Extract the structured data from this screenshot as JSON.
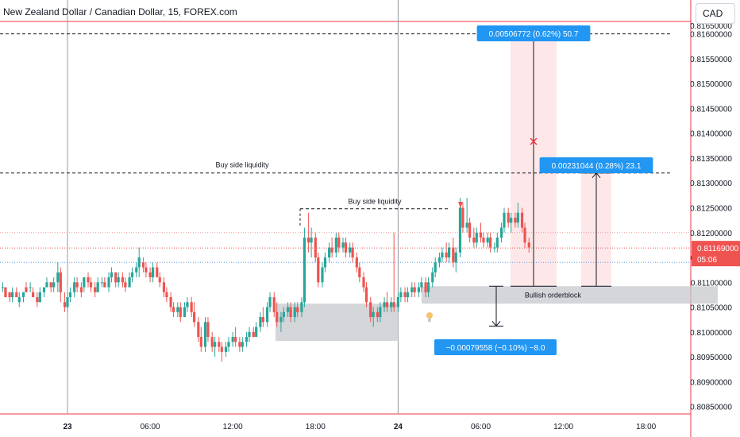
{
  "header": {
    "title": "New Zealand Dollar / Canadian Dollar, 15, FOREX.com",
    "currency_button": "CAD"
  },
  "chart_data": {
    "type": "candlestick",
    "symbol": "NZDCAD",
    "interval": "15",
    "y_axis": {
      "ylim": [
        0.80835,
        0.81625
      ],
      "ticks": [
        "0.81600000",
        "0.81550000",
        "0.81500000",
        "0.81450000",
        "0.81400000",
        "0.81350000",
        "0.81300000",
        "0.81250000",
        "0.81200000",
        "0.81150000",
        "0.81100000",
        "0.81050000",
        "0.81000000",
        "0.80950000",
        "0.80900000",
        "0.80850000"
      ],
      "tick_values": [
        0.816,
        0.8155,
        0.815,
        0.8145,
        0.814,
        0.8135,
        0.813,
        0.8125,
        0.812,
        0.8115,
        0.811,
        0.8105,
        0.81,
        0.8095,
        0.809,
        0.8085
      ],
      "partial_top_tick": "0.81650000"
    },
    "x_axis": {
      "ticks": [
        "23",
        "06:00",
        "12:00",
        "18:00",
        "24",
        "06:00",
        "12:00",
        "18:00"
      ],
      "bold_ticks": [
        "23",
        "24"
      ],
      "hours_from_23": [
        0,
        6,
        12,
        18,
        24,
        30,
        36,
        42
      ]
    },
    "last_price": {
      "value": "0.81169000",
      "countdown": "05:06"
    },
    "colors": {
      "up": "#26a69a",
      "down": "#ef5350",
      "label_blue": "#2196f3",
      "zone_grey": "#d1d4dc"
    },
    "session_lines_hours": [
      0,
      24
    ],
    "liquidity_levels": [
      {
        "price": 0.816,
        "label": ""
      },
      {
        "price": 0.8132,
        "label": "Buy side liquidity"
      },
      {
        "price": 0.81248,
        "label": "Buy side liquidity"
      }
    ],
    "zones": [
      {
        "label": "",
        "top": 0.81057,
        "bottom": 0.80982,
        "start_hour": 15.1,
        "end_hour": 24
      },
      {
        "label": "Bullish orderblock",
        "top": 0.81092,
        "bottom": 0.81057,
        "start_hour": 25.7,
        "end_hour": 47.2
      }
    ],
    "measures": [
      {
        "label": "0.00506772 (0.62%) 50.7",
        "from": 0.81092,
        "to": 0.816,
        "hour": 32.5
      },
      {
        "label": "0.00231044 (0.28%) 23.1",
        "from": 0.81092,
        "to": 0.8132,
        "hour": 37.5
      },
      {
        "label": "−0.00079558 (−0.10%) −8.0",
        "from": 0.81092,
        "to": 0.81012,
        "hour": 31.7
      }
    ],
    "candles": [
      [
        -4.7,
        0.8109,
        0.811,
        0.8108,
        0.8109
      ],
      [
        -4.5,
        0.8109,
        0.8109,
        0.8107,
        0.8107
      ],
      [
        -4.2,
        0.8108,
        0.8108,
        0.8106,
        0.8107
      ],
      [
        -4.0,
        0.8107,
        0.8109,
        0.8106,
        0.8108
      ],
      [
        -3.7,
        0.8108,
        0.8109,
        0.8107,
        0.8107
      ],
      [
        -3.5,
        0.8106,
        0.8108,
        0.8105,
        0.8107
      ],
      [
        -3.2,
        0.8107,
        0.8108,
        0.8106,
        0.8108
      ],
      [
        -3.0,
        0.8109,
        0.811,
        0.8108,
        0.8108
      ],
      [
        -2.7,
        0.8109,
        0.811,
        0.8108,
        0.8109
      ],
      [
        -2.5,
        0.8108,
        0.8109,
        0.8107,
        0.8107
      ],
      [
        -2.2,
        0.8107,
        0.8108,
        0.8105,
        0.8106
      ],
      [
        -2.0,
        0.8106,
        0.8109,
        0.8106,
        0.8108
      ],
      [
        -1.7,
        0.8108,
        0.8109,
        0.8107,
        0.8109
      ],
      [
        -1.5,
        0.8109,
        0.8111,
        0.8109,
        0.811
      ],
      [
        -1.2,
        0.811,
        0.811,
        0.8108,
        0.8109
      ],
      [
        -1.0,
        0.8109,
        0.8111,
        0.8108,
        0.811
      ],
      [
        -0.7,
        0.811,
        0.8114,
        0.8108,
        0.8112
      ],
      [
        -0.5,
        0.8112,
        0.8113,
        0.8106,
        0.8108
      ],
      [
        -0.2,
        0.8106,
        0.8108,
        0.8104,
        0.8105
      ],
      [
        0.0,
        0.8105,
        0.8108,
        0.8104,
        0.8107
      ],
      [
        0.2,
        0.8107,
        0.8109,
        0.8106,
        0.8108
      ],
      [
        0.5,
        0.8108,
        0.8111,
        0.8107,
        0.811
      ],
      [
        0.7,
        0.811,
        0.8111,
        0.8108,
        0.8109
      ],
      [
        1.0,
        0.8109,
        0.811,
        0.8107,
        0.8108
      ],
      [
        1.2,
        0.8109,
        0.8111,
        0.8108,
        0.8111
      ],
      [
        1.5,
        0.8111,
        0.8112,
        0.8109,
        0.811
      ],
      [
        1.7,
        0.811,
        0.8111,
        0.8108,
        0.8109
      ],
      [
        2.0,
        0.8109,
        0.811,
        0.8107,
        0.8108
      ],
      [
        2.2,
        0.8108,
        0.8111,
        0.8108,
        0.811
      ],
      [
        2.5,
        0.811,
        0.8111,
        0.8109,
        0.811
      ],
      [
        2.7,
        0.811,
        0.8111,
        0.8109,
        0.8109
      ],
      [
        3.0,
        0.8109,
        0.8112,
        0.8108,
        0.8111
      ],
      [
        3.2,
        0.8111,
        0.8113,
        0.811,
        0.8112
      ],
      [
        3.5,
        0.8112,
        0.8112,
        0.8109,
        0.811
      ],
      [
        3.7,
        0.811,
        0.8112,
        0.8109,
        0.8111
      ],
      [
        4.0,
        0.8111,
        0.8112,
        0.8109,
        0.811
      ],
      [
        4.2,
        0.811,
        0.8111,
        0.8108,
        0.8109
      ],
      [
        4.5,
        0.8109,
        0.8112,
        0.8109,
        0.8111
      ],
      [
        4.7,
        0.8111,
        0.8113,
        0.811,
        0.8112
      ],
      [
        5.0,
        0.8112,
        0.8114,
        0.8111,
        0.8113
      ],
      [
        5.2,
        0.8113,
        0.8117,
        0.8111,
        0.8115
      ],
      [
        5.5,
        0.8114,
        0.8115,
        0.8112,
        0.8113
      ],
      [
        5.7,
        0.8113,
        0.8114,
        0.8111,
        0.8112
      ],
      [
        6.0,
        0.8112,
        0.8113,
        0.811,
        0.8111
      ],
      [
        6.2,
        0.8111,
        0.8114,
        0.811,
        0.8113
      ],
      [
        6.5,
        0.8113,
        0.8114,
        0.8111,
        0.8111
      ],
      [
        6.7,
        0.8111,
        0.8112,
        0.8109,
        0.811
      ],
      [
        7.0,
        0.811,
        0.8111,
        0.8107,
        0.8108
      ],
      [
        7.2,
        0.8108,
        0.8109,
        0.8106,
        0.8107
      ],
      [
        7.5,
        0.8107,
        0.8108,
        0.8104,
        0.8105
      ],
      [
        7.7,
        0.8105,
        0.8106,
        0.8103,
        0.8104
      ],
      [
        8.0,
        0.8104,
        0.8106,
        0.8103,
        0.8105
      ],
      [
        8.2,
        0.8105,
        0.8106,
        0.8102,
        0.8103
      ],
      [
        8.5,
        0.8103,
        0.8106,
        0.8103,
        0.8105
      ],
      [
        8.7,
        0.8105,
        0.8107,
        0.8104,
        0.8106
      ],
      [
        9.0,
        0.8106,
        0.8107,
        0.8103,
        0.8104
      ],
      [
        9.2,
        0.8104,
        0.8106,
        0.8101,
        0.8102
      ],
      [
        9.5,
        0.8102,
        0.8103,
        0.8098,
        0.8099
      ],
      [
        9.7,
        0.8099,
        0.8101,
        0.8096,
        0.8097
      ],
      [
        10.0,
        0.8097,
        0.8103,
        0.8096,
        0.8102
      ],
      [
        10.2,
        0.8102,
        0.8103,
        0.8098,
        0.8099
      ],
      [
        10.5,
        0.8099,
        0.81,
        0.8096,
        0.8097
      ],
      [
        10.7,
        0.8097,
        0.8099,
        0.8095,
        0.8098
      ],
      [
        11.0,
        0.8098,
        0.8099,
        0.8096,
        0.8097
      ],
      [
        11.2,
        0.8097,
        0.8098,
        0.8094,
        0.8096
      ],
      [
        11.5,
        0.8096,
        0.8098,
        0.8095,
        0.8097
      ],
      [
        11.7,
        0.8097,
        0.8099,
        0.8096,
        0.8098
      ],
      [
        12.0,
        0.8098,
        0.81,
        0.8097,
        0.8099
      ],
      [
        12.2,
        0.8099,
        0.8101,
        0.8097,
        0.8098
      ],
      [
        12.5,
        0.8098,
        0.8099,
        0.8096,
        0.8097
      ],
      [
        12.7,
        0.8097,
        0.8099,
        0.8096,
        0.8098
      ],
      [
        13.0,
        0.8098,
        0.81,
        0.8097,
        0.8099
      ],
      [
        13.2,
        0.8099,
        0.8101,
        0.8098,
        0.81
      ],
      [
        13.5,
        0.81,
        0.8101,
        0.8099,
        0.8099
      ],
      [
        13.7,
        0.8099,
        0.8102,
        0.8099,
        0.8101
      ],
      [
        14.0,
        0.8101,
        0.8104,
        0.81,
        0.8103
      ],
      [
        14.2,
        0.8103,
        0.8105,
        0.8101,
        0.8102
      ],
      [
        14.5,
        0.8102,
        0.8106,
        0.8101,
        0.8105
      ],
      [
        14.7,
        0.8105,
        0.8108,
        0.8104,
        0.8107
      ],
      [
        15.0,
        0.8107,
        0.8108,
        0.8103,
        0.8104
      ],
      [
        15.2,
        0.8104,
        0.8106,
        0.8101,
        0.8102
      ],
      [
        15.5,
        0.8102,
        0.8104,
        0.81,
        0.8103
      ],
      [
        15.7,
        0.8103,
        0.8105,
        0.8102,
        0.8104
      ],
      [
        16.0,
        0.8104,
        0.8106,
        0.8103,
        0.8105
      ],
      [
        16.2,
        0.8105,
        0.8106,
        0.8102,
        0.8103
      ],
      [
        16.5,
        0.8103,
        0.8106,
        0.8102,
        0.8105
      ],
      [
        16.7,
        0.8105,
        0.8106,
        0.8103,
        0.8104
      ],
      [
        17.0,
        0.8104,
        0.8107,
        0.8103,
        0.8106
      ],
      [
        17.2,
        0.8106,
        0.8121,
        0.8105,
        0.8119
      ],
      [
        17.5,
        0.8119,
        0.8124,
        0.8116,
        0.8118
      ],
      [
        17.7,
        0.8118,
        0.8121,
        0.8115,
        0.8119
      ],
      [
        18.0,
        0.8119,
        0.812,
        0.8114,
        0.8115
      ],
      [
        18.2,
        0.8115,
        0.8116,
        0.8109,
        0.811
      ],
      [
        18.5,
        0.811,
        0.8114,
        0.8109,
        0.8113
      ],
      [
        18.7,
        0.8113,
        0.8116,
        0.8112,
        0.8115
      ],
      [
        19.0,
        0.8115,
        0.8118,
        0.8114,
        0.8117
      ],
      [
        19.2,
        0.8117,
        0.8119,
        0.8115,
        0.8116
      ],
      [
        19.5,
        0.8116,
        0.812,
        0.8115,
        0.8119
      ],
      [
        19.7,
        0.8119,
        0.812,
        0.8116,
        0.8117
      ],
      [
        20.0,
        0.8117,
        0.8119,
        0.8116,
        0.8118
      ],
      [
        20.2,
        0.8118,
        0.8119,
        0.8115,
        0.8116
      ],
      [
        20.5,
        0.8116,
        0.8118,
        0.8115,
        0.8117
      ],
      [
        20.7,
        0.8117,
        0.8118,
        0.8114,
        0.8115
      ],
      [
        21.0,
        0.8115,
        0.8116,
        0.8112,
        0.8113
      ],
      [
        21.2,
        0.8113,
        0.8114,
        0.811,
        0.8111
      ],
      [
        21.5,
        0.8111,
        0.8112,
        0.8108,
        0.8109
      ],
      [
        21.7,
        0.8109,
        0.811,
        0.8105,
        0.8106
      ],
      [
        22.0,
        0.8106,
        0.8107,
        0.8102,
        0.8103
      ],
      [
        22.2,
        0.8103,
        0.8105,
        0.8101,
        0.8104
      ],
      [
        22.5,
        0.8104,
        0.8105,
        0.8102,
        0.8103
      ],
      [
        22.7,
        0.8103,
        0.8106,
        0.8102,
        0.8105
      ],
      [
        23.0,
        0.8105,
        0.8107,
        0.8104,
        0.8106
      ],
      [
        23.2,
        0.8106,
        0.8108,
        0.8104,
        0.8105
      ],
      [
        23.5,
        0.8105,
        0.8107,
        0.8104,
        0.8106
      ],
      [
        23.7,
        0.8106,
        0.812,
        0.8104,
        0.8105
      ],
      [
        24.0,
        0.8105,
        0.8108,
        0.8104,
        0.8107
      ],
      [
        24.2,
        0.8107,
        0.8109,
        0.8106,
        0.8108
      ],
      [
        24.5,
        0.8108,
        0.8109,
        0.8106,
        0.8107
      ],
      [
        24.7,
        0.8107,
        0.8109,
        0.8106,
        0.8108
      ],
      [
        25.0,
        0.8108,
        0.811,
        0.8107,
        0.8109
      ],
      [
        25.2,
        0.8109,
        0.811,
        0.8107,
        0.8108
      ],
      [
        25.5,
        0.8108,
        0.811,
        0.8107,
        0.8109
      ],
      [
        25.7,
        0.8109,
        0.8111,
        0.8108,
        0.811
      ],
      [
        26.0,
        0.811,
        0.8111,
        0.8107,
        0.8108
      ],
      [
        26.2,
        0.8108,
        0.8111,
        0.8107,
        0.811
      ],
      [
        26.5,
        0.811,
        0.8113,
        0.8109,
        0.8112
      ],
      [
        26.7,
        0.8112,
        0.8115,
        0.8111,
        0.8114
      ],
      [
        27.0,
        0.8114,
        0.8116,
        0.8113,
        0.8115
      ],
      [
        27.2,
        0.8115,
        0.8117,
        0.8114,
        0.8116
      ],
      [
        27.5,
        0.8116,
        0.8118,
        0.8114,
        0.8115
      ],
      [
        27.7,
        0.8115,
        0.8118,
        0.8114,
        0.8117
      ],
      [
        28.0,
        0.8117,
        0.8119,
        0.8113,
        0.8114
      ],
      [
        28.2,
        0.8114,
        0.8117,
        0.8112,
        0.8116
      ],
      [
        28.5,
        0.8116,
        0.8127,
        0.8115,
        0.8125
      ],
      [
        28.7,
        0.8125,
        0.8126,
        0.812,
        0.8121
      ],
      [
        29.0,
        0.8121,
        0.8127,
        0.812,
        0.8122
      ],
      [
        29.2,
        0.8122,
        0.8123,
        0.8118,
        0.8119
      ],
      [
        29.5,
        0.8119,
        0.8121,
        0.8117,
        0.8118
      ],
      [
        29.7,
        0.8118,
        0.8121,
        0.8117,
        0.812
      ],
      [
        30.0,
        0.812,
        0.8122,
        0.8118,
        0.8119
      ],
      [
        30.2,
        0.8119,
        0.812,
        0.8117,
        0.8118
      ],
      [
        30.5,
        0.8118,
        0.812,
        0.8117,
        0.8119
      ],
      [
        30.7,
        0.8119,
        0.812,
        0.8116,
        0.8117
      ],
      [
        31.0,
        0.8117,
        0.8118,
        0.8116,
        0.8117
      ],
      [
        31.2,
        0.8117,
        0.812,
        0.8116,
        0.8119
      ],
      [
        31.5,
        0.8119,
        0.8122,
        0.8118,
        0.8121
      ],
      [
        31.7,
        0.8121,
        0.8125,
        0.812,
        0.8124
      ],
      [
        32.0,
        0.8124,
        0.8125,
        0.8121,
        0.8122
      ],
      [
        32.2,
        0.8122,
        0.8124,
        0.812,
        0.8123
      ],
      [
        32.5,
        0.8123,
        0.8124,
        0.8121,
        0.8122
      ],
      [
        32.7,
        0.8122,
        0.8126,
        0.8121,
        0.8124
      ],
      [
        33.0,
        0.8124,
        0.8125,
        0.812,
        0.8121
      ],
      [
        33.2,
        0.8121,
        0.8122,
        0.8117,
        0.8118
      ],
      [
        33.5,
        0.8118,
        0.8119,
        0.8116,
        0.8117
      ]
    ]
  }
}
